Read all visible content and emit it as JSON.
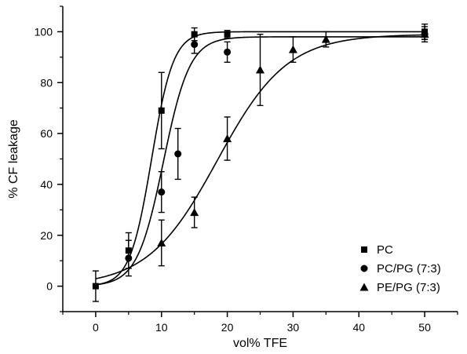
{
  "chart_data": {
    "type": "scatter",
    "xlabel": "vol% TFE",
    "ylabel": "% CF leakage",
    "xlim": [
      -5,
      55
    ],
    "ylim": [
      -10,
      110
    ],
    "x_ticks": [
      0,
      10,
      20,
      30,
      40,
      50
    ],
    "y_ticks": [
      0,
      20,
      40,
      60,
      80,
      100
    ],
    "x_minor_step": 5,
    "y_minor_step": 10,
    "legend_position": "bottom-right",
    "grid": false,
    "series": [
      {
        "name": "PC",
        "marker": "square",
        "points": [
          {
            "x": 0,
            "y": 0,
            "err": 6
          },
          {
            "x": 5,
            "y": 14,
            "err": 7
          },
          {
            "x": 10,
            "y": 69,
            "err": 15
          },
          {
            "x": 15,
            "y": 99,
            "err": 2.5
          },
          {
            "x": 20,
            "y": 99,
            "err": 1.5
          },
          {
            "x": 50,
            "y": 100,
            "err": 3
          }
        ],
        "fit": {
          "x50": 8.5,
          "slope": 1.65,
          "top": 100
        }
      },
      {
        "name": "PC/PG (7:3)",
        "marker": "circle",
        "points": [
          {
            "x": 5,
            "y": 11,
            "err": 7
          },
          {
            "x": 10,
            "y": 37,
            "err": 8
          },
          {
            "x": 12.5,
            "y": 52,
            "err": 10
          },
          {
            "x": 15,
            "y": 95,
            "err": 3.5
          },
          {
            "x": 20,
            "y": 92,
            "err": 4
          },
          {
            "x": 50,
            "y": 99,
            "err": 3
          }
        ],
        "fit": {
          "x50": 10.3,
          "slope": 2.0,
          "top": 98
        }
      },
      {
        "name": "PE/PG (7:3)",
        "marker": "triangle",
        "points": [
          {
            "x": 10,
            "y": 17,
            "err": 9
          },
          {
            "x": 15,
            "y": 29,
            "err": 6
          },
          {
            "x": 20,
            "y": 58,
            "err": 8.5
          },
          {
            "x": 25,
            "y": 85,
            "err": 14
          },
          {
            "x": 30,
            "y": 93,
            "err": 5
          },
          {
            "x": 35,
            "y": 97,
            "err": 3
          },
          {
            "x": 50,
            "y": 99,
            "err": 2
          }
        ],
        "fit": {
          "x50": 18.5,
          "slope": 5.3,
          "top": 99
        }
      }
    ]
  }
}
